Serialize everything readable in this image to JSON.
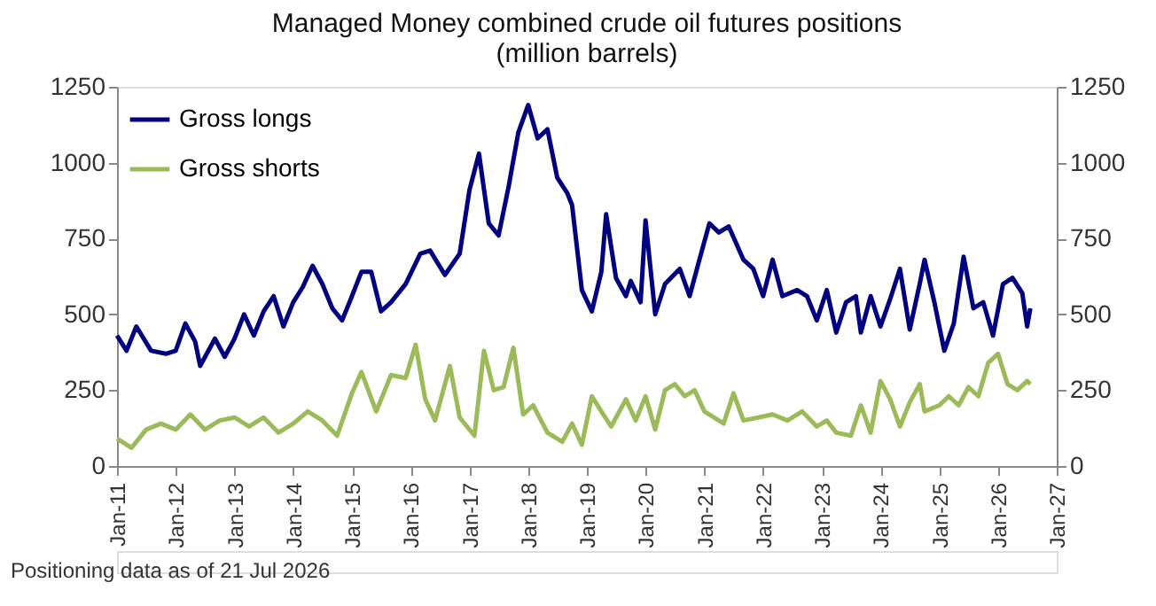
{
  "chart_data": {
    "type": "line",
    "title": [
      "Managed Money combined crude oil futures positions",
      "(million barrels)"
    ],
    "annotations": [
      "Positioning data as of 21 Jul 2026"
    ],
    "xlim": [
      "2011-01",
      "2027-01"
    ],
    "xticks": [
      {
        "value": "2011-01",
        "label": "Jan-11"
      },
      {
        "value": "2012-01",
        "label": "Jan-12"
      },
      {
        "value": "2013-01",
        "label": "Jan-13"
      },
      {
        "value": "2014-01",
        "label": "Jan-14"
      },
      {
        "value": "2015-01",
        "label": "Jan-15"
      },
      {
        "value": "2016-01",
        "label": "Jan-16"
      },
      {
        "value": "2017-01",
        "label": "Jan-17"
      },
      {
        "value": "2018-01",
        "label": "Jan-18"
      },
      {
        "value": "2019-01",
        "label": "Jan-19"
      },
      {
        "value": "2020-01",
        "label": "Jan-20"
      },
      {
        "value": "2021-01",
        "label": "Jan-21"
      },
      {
        "value": "2022-01",
        "label": "Jan-22"
      },
      {
        "value": "2023-01",
        "label": "Jan-23"
      },
      {
        "value": "2024-01",
        "label": "Jan-24"
      },
      {
        "value": "2025-01",
        "label": "Jan-25"
      },
      {
        "value": "2026-01",
        "label": "Jan-26"
      },
      {
        "value": "2027-01",
        "label": "Jan-27"
      }
    ],
    "ylim": [
      0,
      1250
    ],
    "yticks": [
      0,
      250,
      500,
      750,
      1000,
      1250
    ],
    "y2lim": [
      0,
      1250
    ],
    "y2ticks": [
      0,
      250,
      500,
      750,
      1000,
      1250
    ],
    "grid": false,
    "legend": "top left",
    "line_style": "solid",
    "marker": "none",
    "series": [
      {
        "name": "Gross longs",
        "color": "#000080",
        "x": [
          "2011-01",
          "2011-03",
          "2011-05",
          "2011-08",
          "2011-11",
          "2012-01",
          "2012-03",
          "2012-05",
          "2012-06",
          "2012-09",
          "2012-11",
          "2013-01",
          "2013-03",
          "2013-05",
          "2013-07",
          "2013-09",
          "2013-11",
          "2014-01",
          "2014-03",
          "2014-05",
          "2014-07",
          "2014-09",
          "2014-11",
          "2015-01",
          "2015-03",
          "2015-05",
          "2015-07",
          "2015-09",
          "2015-12",
          "2016-03",
          "2016-05",
          "2016-08",
          "2016-11",
          "2017-01",
          "2017-03",
          "2017-05",
          "2017-07",
          "2017-09",
          "2017-11",
          "2018-01",
          "2018-03",
          "2018-05",
          "2018-07",
          "2018-09",
          "2018-10",
          "2018-12",
          "2019-02",
          "2019-04",
          "2019-05",
          "2019-07",
          "2019-09",
          "2019-10",
          "2019-12",
          "2020-01",
          "2020-03",
          "2020-05",
          "2020-08",
          "2020-10",
          "2020-12",
          "2021-02",
          "2021-04",
          "2021-06",
          "2021-09",
          "2021-11",
          "2022-01",
          "2022-03",
          "2022-05",
          "2022-08",
          "2022-10",
          "2022-12",
          "2023-02",
          "2023-04",
          "2023-06",
          "2023-08",
          "2023-09",
          "2023-11",
          "2024-01",
          "2024-03",
          "2024-05",
          "2024-07",
          "2024-09",
          "2024-10",
          "2024-12",
          "2025-02",
          "2025-04",
          "2025-06",
          "2025-08",
          "2025-10",
          "2025-12",
          "2026-02",
          "2026-04",
          "2026-06",
          "2026-07",
          "2026-07-21"
        ],
        "values": [
          430,
          380,
          460,
          380,
          370,
          380,
          470,
          410,
          330,
          420,
          360,
          420,
          500,
          430,
          510,
          560,
          460,
          540,
          590,
          660,
          600,
          520,
          480,
          560,
          640,
          640,
          510,
          540,
          600,
          700,
          710,
          630,
          700,
          910,
          1030,
          800,
          760,
          920,
          1100,
          1190,
          1080,
          1110,
          950,
          900,
          860,
          580,
          510,
          640,
          830,
          620,
          560,
          610,
          540,
          810,
          500,
          600,
          650,
          560,
          680,
          800,
          770,
          790,
          680,
          650,
          560,
          680,
          560,
          580,
          560,
          480,
          580,
          440,
          540,
          560,
          440,
          560,
          460,
          550,
          650,
          450,
          600,
          680,
          540,
          380,
          470,
          690,
          520,
          540,
          430,
          600,
          620,
          570,
          460,
          520
        ]
      },
      {
        "name": "Gross shorts",
        "color": "#9bbb59",
        "x": [
          "2011-01",
          "2011-04",
          "2011-07",
          "2011-10",
          "2012-01",
          "2012-04",
          "2012-07",
          "2012-10",
          "2013-01",
          "2013-04",
          "2013-07",
          "2013-10",
          "2014-01",
          "2014-04",
          "2014-07",
          "2014-10",
          "2015-01",
          "2015-03",
          "2015-06",
          "2015-09",
          "2015-12",
          "2016-02",
          "2016-04",
          "2016-06",
          "2016-09",
          "2016-11",
          "2017-02",
          "2017-04",
          "2017-06",
          "2017-08",
          "2017-10",
          "2017-12",
          "2018-02",
          "2018-05",
          "2018-08",
          "2018-10",
          "2018-12",
          "2019-02",
          "2019-04",
          "2019-06",
          "2019-09",
          "2019-11",
          "2020-01",
          "2020-03",
          "2020-05",
          "2020-07",
          "2020-09",
          "2020-11",
          "2021-01",
          "2021-03",
          "2021-05",
          "2021-07",
          "2021-09",
          "2021-12",
          "2022-03",
          "2022-06",
          "2022-09",
          "2022-12",
          "2023-02",
          "2023-04",
          "2023-07",
          "2023-09",
          "2023-11",
          "2024-01",
          "2024-03",
          "2024-05",
          "2024-07",
          "2024-09",
          "2024-10",
          "2025-01",
          "2025-03",
          "2025-05",
          "2025-07",
          "2025-09",
          "2025-11",
          "2026-01",
          "2026-03",
          "2026-05",
          "2026-07",
          "2026-07-21"
        ],
        "values": [
          90,
          60,
          120,
          140,
          120,
          170,
          120,
          150,
          160,
          130,
          160,
          110,
          140,
          180,
          150,
          100,
          240,
          310,
          180,
          300,
          290,
          400,
          220,
          150,
          330,
          160,
          100,
          380,
          250,
          260,
          390,
          170,
          200,
          110,
          80,
          140,
          70,
          230,
          180,
          130,
          220,
          150,
          230,
          120,
          250,
          270,
          230,
          250,
          180,
          160,
          140,
          240,
          150,
          160,
          170,
          150,
          180,
          130,
          150,
          110,
          100,
          200,
          110,
          280,
          220,
          130,
          210,
          270,
          180,
          200,
          230,
          200,
          260,
          230,
          340,
          370,
          270,
          250,
          280,
          270
        ]
      }
    ]
  }
}
